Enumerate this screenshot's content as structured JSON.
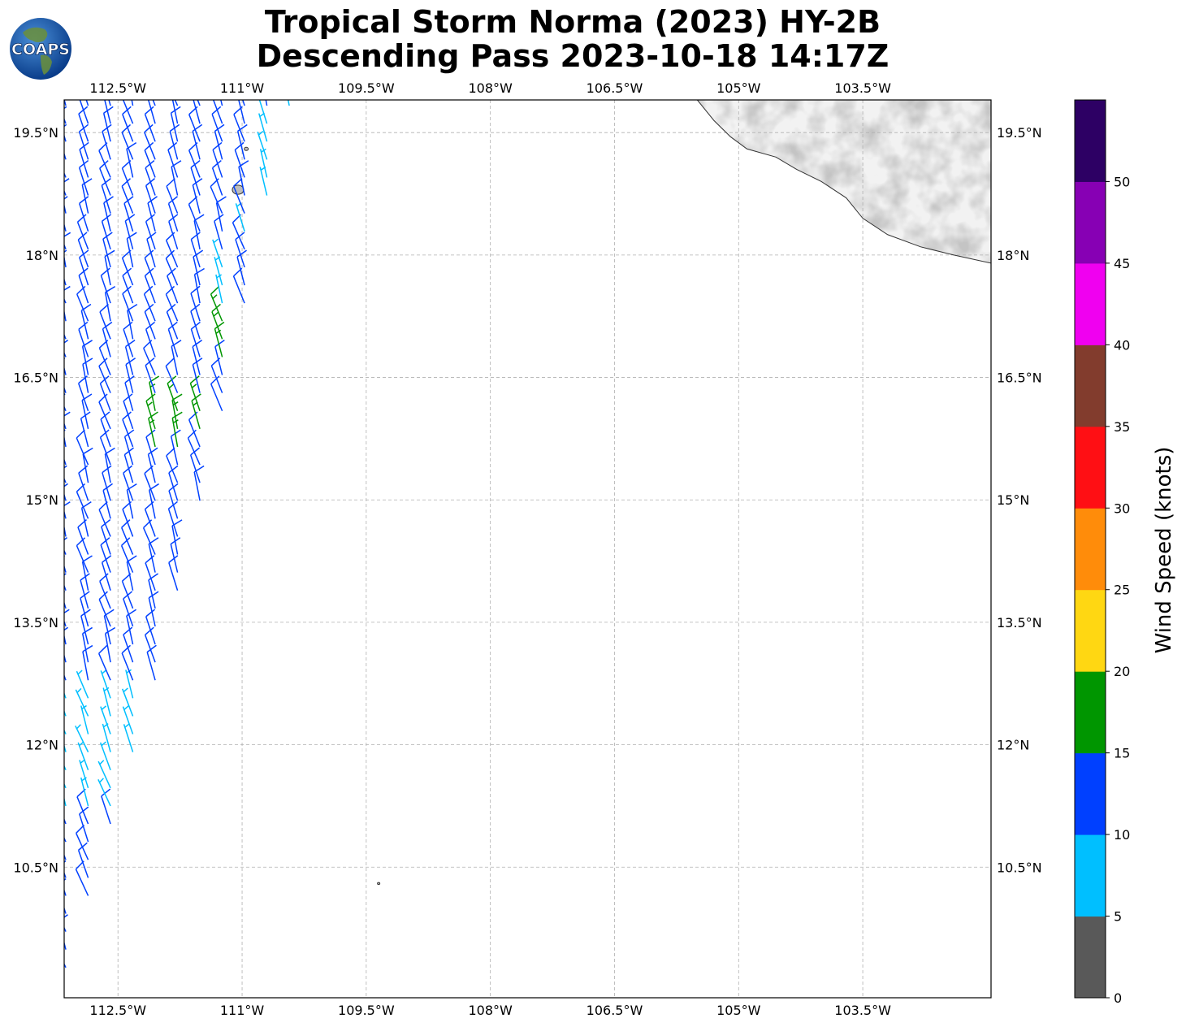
{
  "title": {
    "line1": "Tropical Storm Norma (2023) HY-2B",
    "line2": "Descending Pass 2023-10-18 14:17Z"
  },
  "logo": {
    "text": "COAPS",
    "icon": "globe-logo-icon"
  },
  "map": {
    "projection": "PlateCarree",
    "lon_range": [
      -113.15,
      -101.95
    ],
    "lat_range": [
      8.9,
      19.9
    ],
    "gridlines": true,
    "lon_ticks": [
      {
        "value": -112.5,
        "label": "112.5°W"
      },
      {
        "value": -111.0,
        "label": "111°W"
      },
      {
        "value": -109.5,
        "label": "109.5°W"
      },
      {
        "value": -108.0,
        "label": "108°W"
      },
      {
        "value": -106.5,
        "label": "106.5°W"
      },
      {
        "value": -105.0,
        "label": "105°W"
      },
      {
        "value": -103.5,
        "label": "103.5°W"
      }
    ],
    "lat_ticks": [
      {
        "value": 19.5,
        "label": "19.5°N"
      },
      {
        "value": 18.0,
        "label": "18°N"
      },
      {
        "value": 16.5,
        "label": "16.5°N"
      },
      {
        "value": 15.0,
        "label": "15°N"
      },
      {
        "value": 13.5,
        "label": "13.5°N"
      },
      {
        "value": 12.0,
        "label": "12°N"
      },
      {
        "value": 10.5,
        "label": "10.5°N"
      }
    ],
    "coastline": [
      [
        -105.5,
        19.9
      ],
      [
        -105.3,
        19.65
      ],
      [
        -105.1,
        19.45
      ],
      [
        -104.9,
        19.3
      ],
      [
        -104.55,
        19.2
      ],
      [
        -104.3,
        19.05
      ],
      [
        -104.0,
        18.9
      ],
      [
        -103.7,
        18.7
      ],
      [
        -103.5,
        18.45
      ],
      [
        -103.2,
        18.25
      ],
      [
        -102.8,
        18.1
      ],
      [
        -102.4,
        18.0
      ],
      [
        -101.95,
        17.9
      ]
    ],
    "islands": [
      [
        -111.05,
        18.8
      ],
      [
        -110.95,
        19.3
      ],
      [
        -109.35,
        10.3
      ]
    ]
  },
  "chart_data": {
    "type": "wind-barbs",
    "swath_edge_lon_at_lat": [
      [
        -113.15,
        9.0
      ],
      [
        -112.2,
        12.2
      ],
      [
        -111.2,
        16.1
      ],
      [
        -110.7,
        18.6
      ],
      [
        -110.4,
        19.9
      ]
    ],
    "wind_speed_range_knots": [
      0,
      20
    ],
    "dominant_speed_class_knots": "10-15",
    "max_speed_knots_observed": 20
  },
  "colorbar": {
    "label": "Wind Speed (knots)",
    "bins": [
      {
        "from": 0,
        "to": 5,
        "color": "#595959"
      },
      {
        "from": 5,
        "to": 10,
        "color": "#00bfff"
      },
      {
        "from": 10,
        "to": 15,
        "color": "#0040ff"
      },
      {
        "from": 15,
        "to": 20,
        "color": "#009600"
      },
      {
        "from": 20,
        "to": 25,
        "color": "#ffd712"
      },
      {
        "from": 25,
        "to": 30,
        "color": "#ff8c0a"
      },
      {
        "from": 30,
        "to": 35,
        "color": "#ff0f14"
      },
      {
        "from": 35,
        "to": 40,
        "color": "#823c2d"
      },
      {
        "from": 40,
        "to": 45,
        "color": "#f000f0"
      },
      {
        "from": 45,
        "to": 50,
        "color": "#8700b4"
      },
      {
        "from": 50,
        "to": 55,
        "color": "#2d0064"
      }
    ],
    "ticks": [
      "0",
      "5",
      "10",
      "15",
      "20",
      "25",
      "30",
      "35",
      "40",
      "45",
      "50"
    ]
  }
}
